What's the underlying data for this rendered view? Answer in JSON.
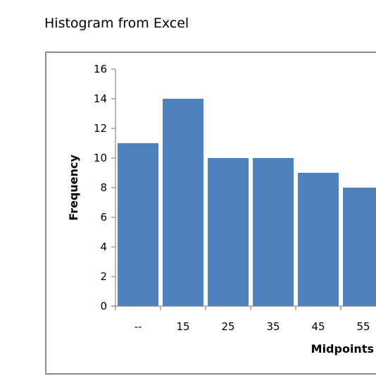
{
  "page": {
    "title": "Histogram from Excel"
  },
  "chart_data": {
    "type": "bar",
    "categories": [
      "--",
      "15",
      "25",
      "35",
      "45",
      "55"
    ],
    "values": [
      11,
      14,
      10,
      10,
      9,
      8
    ],
    "xlabel": "Midpoints",
    "ylabel": "Frequency",
    "ylim": [
      0,
      16
    ],
    "yticks": [
      0,
      2,
      4,
      6,
      8,
      10,
      12,
      14,
      16
    ],
    "grid": false,
    "legend": "none",
    "bar_color": "#4f81bd",
    "frame_color": "#8c8c8c"
  }
}
